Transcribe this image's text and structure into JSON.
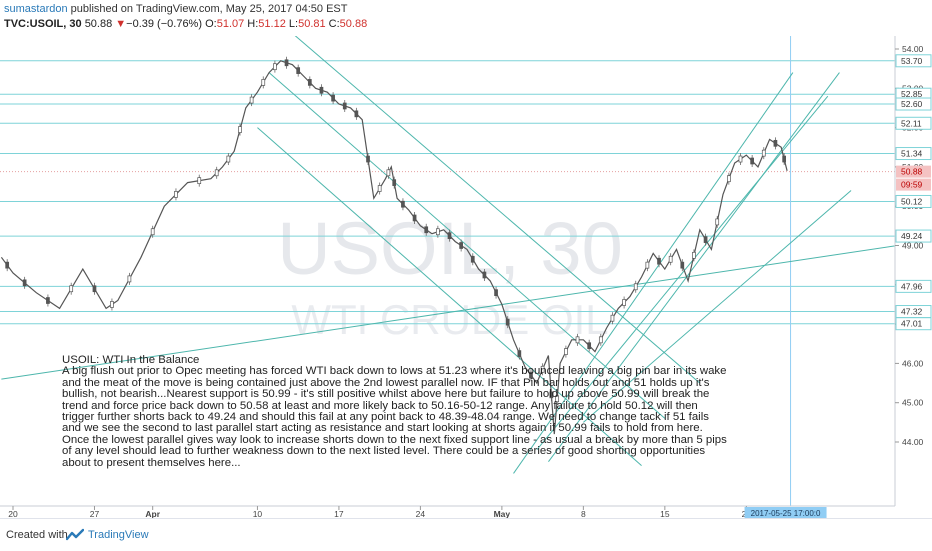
{
  "header": {
    "author": "sumastardon",
    "published": "published on TradingView.com, May 25, 2017 04:50 EST",
    "symbol": "TVC:USOIL, 30",
    "last": "50.88",
    "change_arrow": "▼",
    "change": "−0.39 (−0.76%)",
    "o_label": "O:",
    "o": "51.07",
    "h_label": "H:",
    "h": "51.12",
    "l_label": "L:",
    "l": "50.81",
    "c_label": "C:",
    "c": "50.88"
  },
  "watermark": {
    "symbol": "USOIL, 30",
    "name": "WTI CRUDE OIL"
  },
  "note": {
    "title": "USOIL: WTI  In the Balance",
    "paragraph1": "A big flush out prior to Opec meeting has forced WTI back down to lows at 51.23 where it's bounced leaving a big pin bar in its wake and the meat of the move is being contained just above the 2nd lowest parallel now. IF that Pin bar holds out and 51 holds up it's bullish, not bearish...Nearest support is 50.99 - it's still positive whilst above here but failure to hold up above 50.99 will break the trend and force price back down to 50.58 at least and more likely back to 50.16-50-12 range. Any failure to hold 50.12 will then trigger further shorts back to 49.24 and should this fail at any point back to 48.39-48.04 range. We need to change tack if 51 fails and we see the second to last parallel start acting as resistance and start looking at shorts again if 50.99 fails to hold from here.",
    "paragraph2": "Once the lowest parallel gives way look to increase shorts down to the next fixed support line - as usual a break by more than 5 pips of any level should lead to further weakness down to the next listed level. There could be a series of good shorting opportunities about to present themselves here..."
  },
  "chart_data": {
    "type": "line",
    "title": "TVC:USOIL, 30",
    "y_axis_ticks": [
      54.0,
      53.0,
      52.0,
      51.0,
      50.0,
      49.0,
      48.0,
      47.0,
      46.0,
      45.0,
      44.0
    ],
    "ylim": [
      43.5,
      54.1
    ],
    "x_axis_labels": [
      "20",
      "27",
      "Apr",
      "10",
      "17",
      "24",
      "May",
      "8",
      "15",
      "22"
    ],
    "x_label_positions_days": [
      0,
      7,
      12,
      21,
      28,
      35,
      42,
      49,
      56,
      63
    ],
    "horizontal_levels": [
      53.7,
      52.85,
      52.6,
      52.11,
      51.34,
      50.12,
      49.24,
      47.96,
      47.32,
      47.01
    ],
    "current_price": 50.88,
    "countdown": "09:59",
    "cursor_date": "2017-05-25 17:00:0",
    "price_x_days": [
      -1,
      0,
      2,
      4,
      6,
      8,
      9,
      11,
      13,
      15,
      17,
      18,
      19,
      20,
      21,
      22,
      23,
      24,
      25,
      26,
      27,
      28,
      29,
      30,
      31,
      32,
      32.5,
      33,
      34,
      35,
      36,
      37,
      38,
      39,
      40,
      41,
      42,
      43,
      44,
      45,
      46,
      46.5,
      47,
      48,
      49,
      50,
      51,
      52,
      53,
      54,
      55,
      56,
      57,
      58,
      59,
      60,
      61,
      62,
      63,
      64,
      65,
      66,
      66.5
    ],
    "price_y": [
      48.7,
      48.3,
      47.8,
      47.4,
      48.4,
      47.4,
      47.6,
      48.7,
      50.0,
      50.6,
      50.7,
      51.0,
      51.4,
      52.5,
      52.9,
      53.4,
      53.7,
      53.6,
      53.3,
      53.0,
      52.9,
      52.6,
      52.5,
      52.2,
      50.2,
      50.7,
      51.0,
      50.2,
      49.9,
      49.5,
      49.3,
      49.4,
      49.1,
      48.9,
      48.4,
      48.1,
      47.5,
      46.6,
      45.9,
      45.5,
      46.2,
      44.2,
      46.0,
      46.6,
      46.6,
      46.3,
      46.9,
      47.4,
      47.7,
      48.2,
      48.8,
      48.4,
      48.9,
      48.1,
      49.4,
      48.9,
      50.3,
      51.1,
      51.3,
      51.0,
      51.7,
      51.5,
      50.9
    ]
  }
}
